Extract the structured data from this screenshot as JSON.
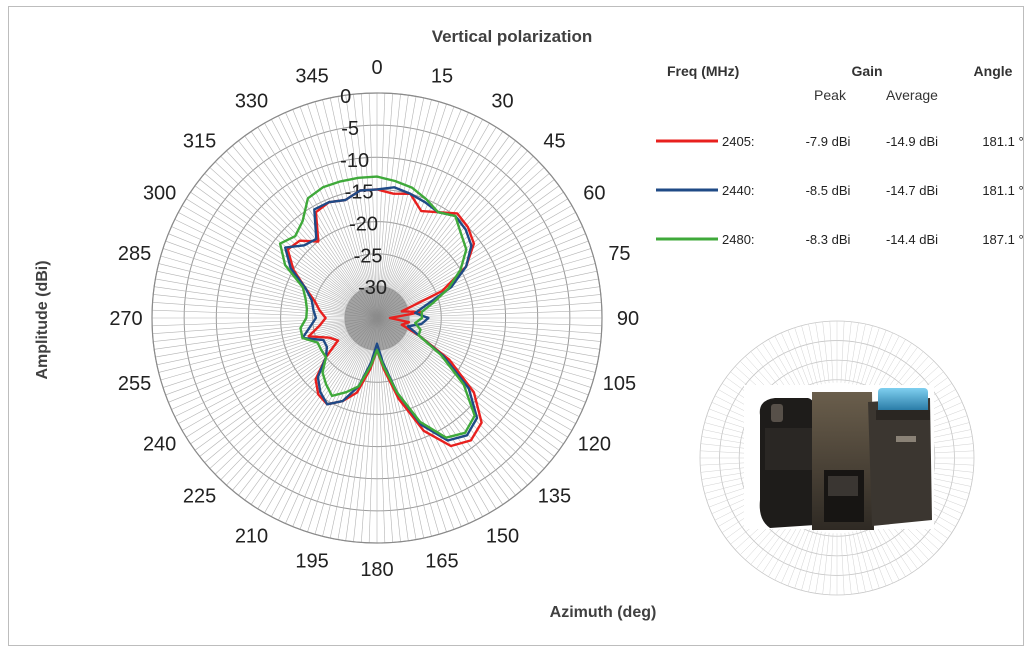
{
  "chart_data": {
    "type": "polar-line",
    "title": "Vertical polarization",
    "xlabel": "Azimuth (deg)",
    "ylabel": "Amplitude (dBi)",
    "angle_ticks": [
      "0",
      "15",
      "30",
      "45",
      "60",
      "75",
      "90",
      "105",
      "120",
      "135",
      "150",
      "165",
      "180",
      "195",
      "210",
      "225",
      "240",
      "255",
      "270",
      "285",
      "300",
      "315",
      "330",
      "345"
    ],
    "radial_ticks": [
      "0",
      "-5",
      "-10",
      "-15",
      "-20",
      "-25",
      "-30"
    ],
    "rlim": [
      -35,
      0
    ],
    "angle_step_deg": 15,
    "series": [
      {
        "name": "2405",
        "color": "#e8201e",
        "values": [
          -15,
          -15.5,
          -15,
          -17,
          -16,
          -14.5,
          -15,
          -16,
          -19,
          -24,
          -31,
          -28,
          -33,
          -30,
          -31,
          -28,
          -22,
          -16,
          -12,
          -11,
          -12,
          -16,
          -22,
          -27,
          -30,
          -27,
          -23,
          -21,
          -19.5,
          -20,
          -21.5,
          -25,
          -28,
          -27,
          -24,
          -26,
          -27,
          -26,
          -25,
          -23,
          -20,
          -17.5,
          -18,
          -20,
          -16,
          -15.5,
          -16,
          -15
        ]
      },
      {
        "name": "2440",
        "color": "#1f4a86",
        "values": [
          -15,
          -14.5,
          -15,
          -15.5,
          -16,
          -15,
          -15.5,
          -16.5,
          -19,
          -22.5,
          -27,
          -29,
          -27,
          -28,
          -30,
          -28,
          -23,
          -17,
          -13,
          -12,
          -13,
          -17,
          -23,
          -28,
          -31,
          -28,
          -24,
          -21,
          -19.5,
          -20.5,
          -22,
          -25,
          -26,
          -26,
          -23,
          -24.5,
          -25.5,
          -25,
          -24.5,
          -23,
          -19.5,
          -17,
          -19,
          -19.5,
          -15.5,
          -15.5,
          -16,
          -15
        ]
      },
      {
        "name": "2480",
        "color": "#3fa93a",
        "values": [
          -13,
          -13.5,
          -14,
          -15,
          -16,
          -15,
          -16.5,
          -17.5,
          -20,
          -23,
          -26,
          -28,
          -28,
          -29,
          -28,
          -28,
          -23.5,
          -18,
          -13.5,
          -12.5,
          -13.5,
          -17.5,
          -23,
          -27.5,
          -30,
          -27.5,
          -24,
          -22.5,
          -21,
          -22,
          -23,
          -25,
          -25,
          -25,
          -23,
          -23,
          -24,
          -24,
          -23.5,
          -22.5,
          -18.5,
          -16,
          -17,
          -16,
          -13.5,
          -13,
          -13,
          -13
        ]
      }
    ],
    "legend": {
      "headers": {
        "freq": "Freq (MHz)",
        "gain": "Gain",
        "peak": "Peak",
        "average": "Average",
        "angle": "Angle"
      },
      "rows": [
        {
          "freq": "2405:",
          "peak": "-7.9 dBi",
          "average": "-14.9 dBi",
          "angle": "181.1 °",
          "color": "#e8201e"
        },
        {
          "freq": "2440:",
          "peak": "-8.5 dBi",
          "average": "-14.7 dBi",
          "angle": "181.1 °",
          "color": "#1f4a86"
        },
        {
          "freq": "2480:",
          "peak": "-8.3 dBi",
          "average": "-14.4 dBi",
          "angle": "187.1 °",
          "color": "#3fa93a"
        }
      ]
    }
  },
  "inset": {
    "device_icon": "thermal-camera-photo",
    "grid_icon": "mini-polar-grid"
  }
}
